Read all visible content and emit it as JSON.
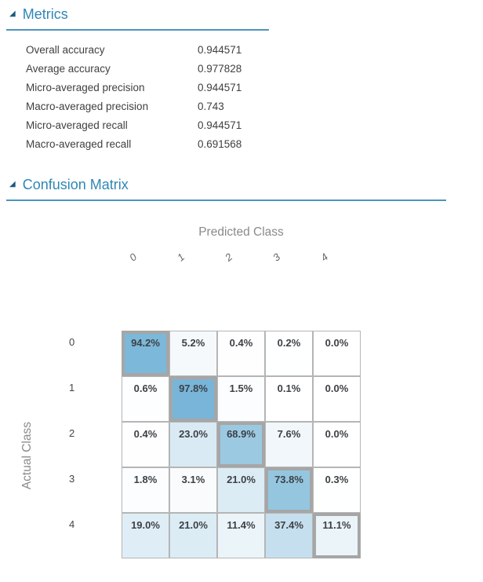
{
  "sections": {
    "metrics": {
      "title": "Metrics",
      "collapse_icon": "triangle-lower-right"
    },
    "confusion_matrix": {
      "title": "Confusion Matrix",
      "collapse_icon": "triangle-lower-right"
    }
  },
  "metrics": {
    "rows": [
      {
        "label": "Overall accuracy",
        "value": "0.944571"
      },
      {
        "label": "Average accuracy",
        "value": "0.977828"
      },
      {
        "label": "Micro-averaged precision",
        "value": "0.944571"
      },
      {
        "label": "Macro-averaged precision",
        "value": "0.743"
      },
      {
        "label": "Micro-averaged recall",
        "value": "0.944571"
      },
      {
        "label": "Macro-averaged recall",
        "value": "0.691568"
      }
    ]
  },
  "chart_data": {
    "type": "heatmap",
    "title": "Confusion Matrix",
    "xlabel": "Predicted Class",
    "ylabel": "Actual Class",
    "x_categories": [
      "0",
      "1",
      "2",
      "3",
      "4"
    ],
    "y_categories": [
      "0",
      "1",
      "2",
      "3",
      "4"
    ],
    "values_percent": [
      [
        94.2,
        5.2,
        0.4,
        0.2,
        0.0
      ],
      [
        0.6,
        97.8,
        1.5,
        0.1,
        0.0
      ],
      [
        0.4,
        23.0,
        68.9,
        7.6,
        0.0
      ],
      [
        1.8,
        3.1,
        21.0,
        73.8,
        0.3
      ],
      [
        19.0,
        21.0,
        11.4,
        37.4,
        11.1
      ]
    ],
    "cell_label_suffix": "%",
    "cell_label_decimals": 1,
    "diagonal_highlight": true,
    "colors": {
      "base": "#75b4d7",
      "min": "#ffffff"
    },
    "legend_position": "none",
    "grid": true
  },
  "colors": {
    "section_title": "#2e87b5",
    "section_icon": "#1d5a7e",
    "section_rule": "#4d94bd",
    "text_dark": "#3f3f3f",
    "axis_label": "#8a8a8a",
    "tick_label": "#666666",
    "cell_border": "#b5b5b5",
    "diagonal_border": "#a6a6a6",
    "cell_text": "#3d4146"
  },
  "icons": {
    "collapse": "◢"
  }
}
